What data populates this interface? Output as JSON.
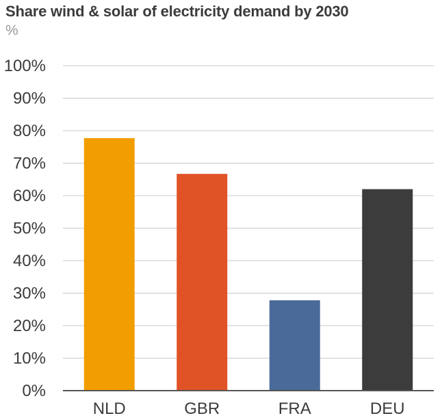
{
  "chart_data": {
    "type": "bar",
    "title": "Share wind & solar of electricity demand by 2030",
    "unit": "%",
    "xlabel": "",
    "ylabel": "%",
    "categories": [
      "NLD",
      "GBR",
      "FRA",
      "DEU"
    ],
    "values": [
      77.7,
      66.7,
      27.8,
      62.0
    ],
    "colors": [
      "#f29d00",
      "#e05326",
      "#4a6a9a",
      "#3c3c3c"
    ],
    "ylim": [
      0,
      100
    ],
    "y_ticks": [
      0,
      10,
      20,
      30,
      40,
      50,
      60,
      70,
      80,
      90,
      100
    ],
    "y_tick_labels": [
      "0%",
      "10%",
      "20%",
      "30%",
      "40%",
      "50%",
      "60%",
      "70%",
      "80%",
      "90%",
      "100%"
    ],
    "grid": true,
    "legend": "none"
  },
  "colors": {
    "gridline": "#c8c8c8",
    "axis": "#555555",
    "text": "#3b3b3b",
    "unit_text": "#9a9a9a"
  }
}
